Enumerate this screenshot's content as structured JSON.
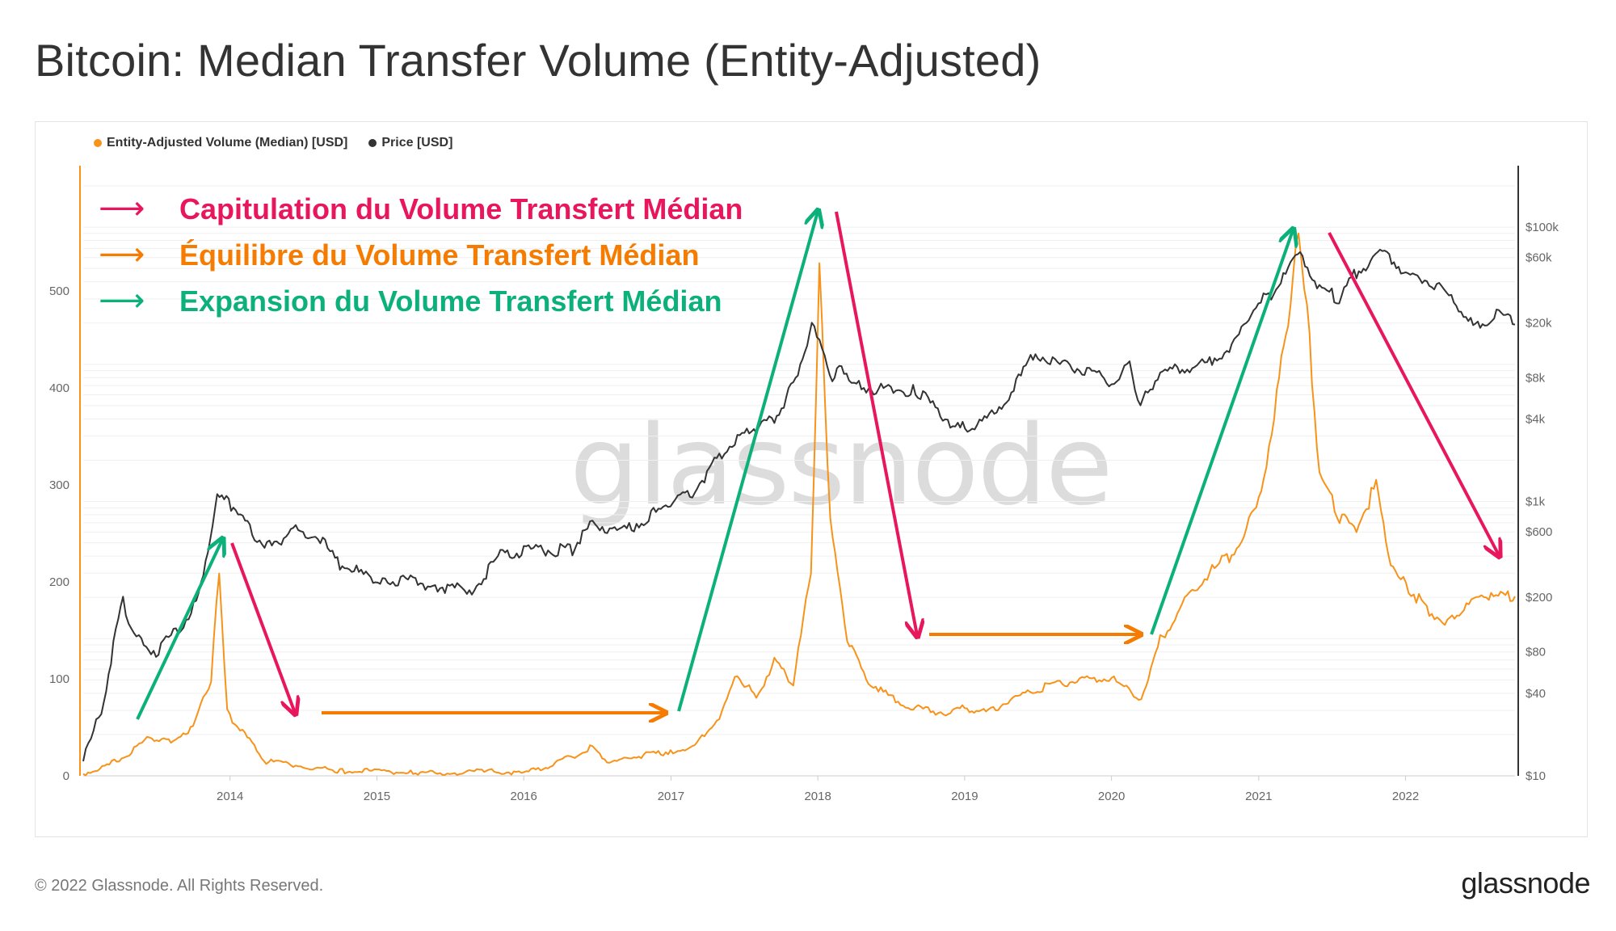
{
  "title": "Bitcoin: Median Transfer Volume (Entity-Adjusted)",
  "watermark": "glassnode",
  "footer": {
    "copyright": "© 2022 Glassnode. All Rights Reserved.",
    "logo": "glassnode"
  },
  "colors": {
    "volume": "#f7931a",
    "price": "#333333",
    "capitulation": "#e8175d",
    "equilibrium": "#f57c00",
    "expansion": "#0bb07b"
  },
  "annotations": [
    {
      "label": "Capitulation du Volume Transfert Médian",
      "arrow": "⟶",
      "color": "#e8175d"
    },
    {
      "label": "Équilibre du Volume Transfert Médian",
      "arrow": "⟶",
      "color": "#f57c00"
    },
    {
      "label": "Expansion du Volume Transfert Médian",
      "arrow": "⟶",
      "color": "#0bb07b"
    }
  ],
  "chart_data": {
    "type": "line",
    "legend": [
      {
        "name": "Entity-Adjusted Volume (Median) [USD]",
        "color": "#f7931a"
      },
      {
        "name": "Price [USD]",
        "color": "#333333"
      }
    ],
    "x_ticks": [
      "2014",
      "2015",
      "2016",
      "2017",
      "2018",
      "2019",
      "2020",
      "2021",
      "2022"
    ],
    "xlim": [
      "2013-01-01",
      "2022-09-30"
    ],
    "left_axis": {
      "ticks": [
        0,
        100,
        200,
        300,
        400,
        500
      ],
      "ylim": [
        0,
        600
      ]
    },
    "right_axis": {
      "scale": "log",
      "ylim": [
        10,
        200000
      ],
      "ticks": [
        {
          "value": 10,
          "label": "$10"
        },
        {
          "value": 40,
          "label": "$40"
        },
        {
          "value": 80,
          "label": "$80"
        },
        {
          "value": 200,
          "label": "$200"
        },
        {
          "value": 600,
          "label": "$600"
        },
        {
          "value": 1000,
          "label": "$1k"
        },
        {
          "value": 4000,
          "label": "$4k"
        },
        {
          "value": 8000,
          "label": "$8k"
        },
        {
          "value": 20000,
          "label": "$20k"
        },
        {
          "value": 60000,
          "label": "$60k"
        },
        {
          "value": 100000,
          "label": "$100k"
        }
      ]
    },
    "series": [
      {
        "name": "Entity-Adjusted Volume (Median) [USD]",
        "axis": "left",
        "x": [
          "2013-01-01",
          "2013-03-01",
          "2013-05-01",
          "2013-06-15",
          "2013-08-01",
          "2013-10-01",
          "2013-11-15",
          "2013-12-05",
          "2013-12-25",
          "2014-02-01",
          "2014-04-01",
          "2014-07-01",
          "2014-10-01",
          "2015-01-01",
          "2015-04-01",
          "2015-07-01",
          "2015-10-01",
          "2016-01-01",
          "2016-03-01",
          "2016-05-01",
          "2016-06-20",
          "2016-08-01",
          "2016-10-01",
          "2016-12-31",
          "2017-03-01",
          "2017-05-01",
          "2017-06-15",
          "2017-08-01",
          "2017-09-15",
          "2017-11-01",
          "2017-12-15",
          "2018-01-05",
          "2018-02-01",
          "2018-03-15",
          "2018-05-01",
          "2018-07-01",
          "2018-09-01",
          "2018-11-15",
          "2019-01-01",
          "2019-03-01",
          "2019-05-01",
          "2019-07-01",
          "2019-09-01",
          "2019-11-01",
          "2020-01-01",
          "2020-03-15",
          "2020-05-01",
          "2020-07-01",
          "2020-09-01",
          "2020-11-01",
          "2021-01-01",
          "2021-02-15",
          "2021-03-15",
          "2021-04-10",
          "2021-05-01",
          "2021-06-01",
          "2021-07-15",
          "2021-09-01",
          "2021-10-20",
          "2021-12-01",
          "2022-01-15",
          "2022-03-01",
          "2022-04-15",
          "2022-06-01",
          "2022-07-15",
          "2022-09-30"
        ],
        "values": [
          2,
          10,
          25,
          40,
          35,
          50,
          100,
          215,
          65,
          45,
          15,
          10,
          5,
          5,
          3,
          3,
          5,
          3,
          10,
          20,
          30,
          12,
          20,
          25,
          30,
          60,
          105,
          80,
          120,
          95,
          210,
          520,
          260,
          140,
          100,
          80,
          70,
          65,
          70,
          65,
          80,
          90,
          95,
          100,
          100,
          80,
          140,
          180,
          210,
          230,
          280,
          390,
          470,
          560,
          480,
          310,
          270,
          255,
          300,
          210,
          190,
          170,
          160,
          175,
          185,
          185
        ]
      },
      {
        "name": "Price [USD]",
        "axis": "right",
        "x": [
          "2013-01-01",
          "2013-02-15",
          "2013-04-10",
          "2013-05-01",
          "2013-07-01",
          "2013-09-01",
          "2013-10-15",
          "2013-11-30",
          "2014-01-15",
          "2014-02-25",
          "2014-04-15",
          "2014-06-01",
          "2014-08-01",
          "2014-10-01",
          "2015-01-15",
          "2015-03-01",
          "2015-06-01",
          "2015-08-25",
          "2015-11-04",
          "2016-01-01",
          "2016-05-01",
          "2016-06-20",
          "2016-09-01",
          "2016-12-31",
          "2017-03-01",
          "2017-05-01",
          "2017-06-15",
          "2017-08-01",
          "2017-09-15",
          "2017-11-01",
          "2017-12-17",
          "2018-02-06",
          "2018-03-01",
          "2018-04-01",
          "2018-06-01",
          "2018-09-01",
          "2018-11-20",
          "2018-12-15",
          "2019-02-01",
          "2019-04-15",
          "2019-06-26",
          "2019-09-01",
          "2019-11-01",
          "2020-01-01",
          "2020-02-15",
          "2020-03-13",
          "2020-05-01",
          "2020-07-01",
          "2020-09-01",
          "2020-11-01",
          "2020-12-31",
          "2021-02-01",
          "2021-04-14",
          "2021-06-01",
          "2021-07-20",
          "2021-09-01",
          "2021-11-10",
          "2022-01-01",
          "2022-03-01",
          "2022-05-01",
          "2022-06-18",
          "2022-08-15",
          "2022-09-30"
        ],
        "values": [
          13,
          30,
          200,
          110,
          80,
          125,
          200,
          1100,
          900,
          600,
          450,
          620,
          580,
          350,
          250,
          270,
          240,
          230,
          400,
          430,
          450,
          700,
          600,
          950,
          1200,
          2200,
          2900,
          3500,
          4000,
          7000,
          19000,
          8000,
          10000,
          7000,
          6500,
          6500,
          4000,
          3400,
          3500,
          5500,
          12000,
          9800,
          9000,
          7200,
          10000,
          5000,
          8800,
          9200,
          10500,
          14000,
          29000,
          33000,
          63000,
          36000,
          30000,
          47000,
          67000,
          46000,
          40000,
          30000,
          18500,
          23500,
          19500
        ]
      }
    ]
  }
}
